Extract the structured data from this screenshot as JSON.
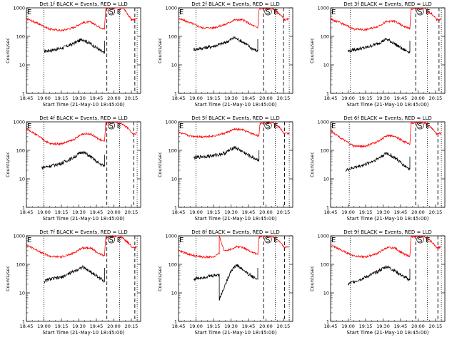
{
  "common": {
    "xlabel": "Start Time (21-May-10 18:45:00)",
    "ylabel": "Counts/sec",
    "x_ticks": [
      "18:45",
      "19:00",
      "19:15",
      "19:30",
      "19:45",
      "20:00",
      "20:15"
    ],
    "y_ticks": [
      "1",
      "10",
      "100",
      "1000"
    ],
    "flags": [
      "S",
      "E"
    ],
    "colors": {
      "events": "#000000",
      "lld": "#ff0000"
    }
  },
  "panels": [
    {
      "title": "Det 1f BLACK = Events, RED = LLD"
    },
    {
      "title": "Det 2f BLACK = Events, RED = LLD"
    },
    {
      "title": "Det 3f BLACK = Events, RED = LLD"
    },
    {
      "title": "Det 4f BLACK = Events, RED = LLD"
    },
    {
      "title": "Det 5f BLACK = Events, RED = LLD"
    },
    {
      "title": "Det 6f BLACK = Events, RED = LLD"
    },
    {
      "title": "Det 7f BLACK = Events, RED = LLD"
    },
    {
      "title": "Det 8f BLACK = Events, RED = LLD"
    },
    {
      "title": "Det 9f BLACK = Events, RED = LLD"
    }
  ],
  "chart_data": [
    {
      "type": "line",
      "title": "Det 1f BLACK = Events, RED = LLD",
      "xlabel": "Start Time (21-May-10 18:45:00)",
      "ylabel": "Counts/sec",
      "xlim": [
        "18:45",
        "20:23"
      ],
      "ylim": [
        1,
        1000
      ],
      "yscale": "log",
      "series": [
        {
          "name": "Events",
          "x": [
            "19:00",
            "19:05",
            "19:15",
            "19:25",
            "19:33",
            "19:40",
            "19:47",
            "19:52",
            "19:52"
          ],
          "y": [
            30,
            32,
            38,
            55,
            80,
            55,
            35,
            25,
            70
          ]
        },
        {
          "name": "LLD",
          "x": [
            "18:45",
            "18:55",
            "19:05",
            "19:15",
            "19:25",
            "19:33",
            "19:40",
            "19:47",
            "19:52",
            "19:53",
            "19:55",
            "20:03",
            "20:08",
            "20:12",
            "20:15",
            "20:20"
          ],
          "y": [
            420,
            280,
            180,
            160,
            200,
            300,
            320,
            220,
            180,
            900,
            1000,
            1000,
            1000,
            600,
            380,
            400
          ]
        }
      ],
      "vlines": {
        "dotted": [
          "19:00",
          "20:05",
          "20:20"
        ],
        "dashed": [
          "19:54",
          "20:18"
        ]
      }
    },
    {
      "type": "line",
      "title": "Det 2f BLACK = Events, RED = LLD",
      "xlabel": "Start Time (21-May-10 18:45:00)",
      "ylabel": "Counts/sec",
      "xlim": [
        "18:45",
        "20:23"
      ],
      "ylim": [
        1,
        1000
      ],
      "yscale": "log",
      "series": [
        {
          "name": "Events",
          "x": [
            "18:58",
            "19:05",
            "19:15",
            "19:25",
            "19:33",
            "19:40",
            "19:47",
            "19:53",
            "19:53"
          ],
          "y": [
            35,
            38,
            45,
            60,
            90,
            65,
            40,
            30,
            80
          ]
        },
        {
          "name": "LLD",
          "x": [
            "18:45",
            "18:55",
            "19:05",
            "19:15",
            "19:25",
            "19:33",
            "19:40",
            "19:47",
            "19:53",
            "19:54",
            "20:05",
            "20:12",
            "20:16",
            "20:20"
          ],
          "y": [
            420,
            300,
            200,
            200,
            260,
            380,
            380,
            260,
            200,
            900,
            1000,
            600,
            380,
            400
          ]
        }
      ],
      "vlines": {
        "dotted": [
          "19:00",
          "20:08",
          "20:20"
        ],
        "dashed": [
          "19:58",
          "20:15"
        ]
      }
    },
    {
      "type": "line",
      "title": "Det 3f BLACK = Events, RED = LLD",
      "xlabel": "Start Time (21-May-10 18:45:00)",
      "ylabel": "Counts/sec",
      "xlim": [
        "18:45",
        "20:23"
      ],
      "ylim": [
        1,
        1000
      ],
      "yscale": "log",
      "series": [
        {
          "name": "Events",
          "x": [
            "19:00",
            "19:05",
            "19:15",
            "19:25",
            "19:33",
            "19:40",
            "19:47",
            "19:53",
            "19:53"
          ],
          "y": [
            30,
            34,
            40,
            55,
            80,
            55,
            35,
            28,
            70
          ]
        },
        {
          "name": "LLD",
          "x": [
            "18:45",
            "18:55",
            "19:05",
            "19:15",
            "19:25",
            "19:33",
            "19:40",
            "19:47",
            "19:53",
            "19:54",
            "20:05",
            "20:12",
            "20:16",
            "20:20"
          ],
          "y": [
            400,
            280,
            180,
            170,
            220,
            330,
            340,
            230,
            190,
            900,
            1000,
            600,
            380,
            400
          ]
        }
      ],
      "vlines": {
        "dotted": [
          "19:02",
          "20:08",
          "20:20"
        ],
        "dashed": [
          "19:58",
          "20:18"
        ]
      }
    },
    {
      "type": "line",
      "title": "Det 4f BLACK = Events, RED = LLD",
      "xlabel": "Start Time (21-May-10 18:45:00)",
      "ylabel": "Counts/sec",
      "xlim": [
        "18:45",
        "20:23"
      ],
      "ylim": [
        1,
        1000
      ],
      "yscale": "log",
      "series": [
        {
          "name": "Events",
          "x": [
            "18:58",
            "19:05",
            "19:15",
            "19:25",
            "19:33",
            "19:40",
            "19:47",
            "19:52",
            "19:52"
          ],
          "y": [
            25,
            28,
            35,
            55,
            90,
            60,
            35,
            28,
            70
          ]
        },
        {
          "name": "LLD",
          "x": [
            "18:45",
            "18:55",
            "19:05",
            "19:15",
            "19:25",
            "19:33",
            "19:40",
            "19:47",
            "19:52",
            "19:53",
            "20:05",
            "20:12",
            "20:16",
            "20:20"
          ],
          "y": [
            600,
            320,
            170,
            170,
            230,
            380,
            380,
            250,
            200,
            900,
            1000,
            600,
            380,
            400
          ]
        }
      ],
      "vlines": {
        "dotted": [
          "19:00",
          "20:05",
          "20:20"
        ],
        "dashed": [
          "19:54",
          "20:17"
        ]
      }
    },
    {
      "type": "line",
      "title": "Det 5f BLACK = Events, RED = LLD",
      "xlabel": "Start Time (21-May-10 18:45:00)",
      "ylabel": "Counts/sec",
      "xlim": [
        "18:45",
        "20:23"
      ],
      "ylim": [
        1,
        1000
      ],
      "yscale": "log",
      "series": [
        {
          "name": "Events",
          "x": [
            "18:58",
            "19:05",
            "19:15",
            "19:25",
            "19:33",
            "19:40",
            "19:47",
            "19:54",
            "19:54"
          ],
          "y": [
            55,
            60,
            65,
            80,
            130,
            90,
            60,
            45,
            100
          ]
        },
        {
          "name": "LLD",
          "x": [
            "18:45",
            "18:55",
            "19:05",
            "19:15",
            "19:25",
            "19:33",
            "19:40",
            "19:47",
            "19:54",
            "19:55",
            "20:06",
            "20:12",
            "20:16",
            "20:20"
          ],
          "y": [
            420,
            320,
            300,
            320,
            400,
            550,
            520,
            400,
            320,
            900,
            1000,
            600,
            380,
            400
          ]
        }
      ],
      "vlines": {
        "dotted": [
          "19:00",
          "20:08",
          "20:20"
        ],
        "dashed": [
          "19:58",
          "20:16"
        ]
      }
    },
    {
      "type": "line",
      "title": "Det 6f BLACK = Events, RED = LLD",
      "xlabel": "Start Time (21-May-10 18:45:00)",
      "ylabel": "Counts/sec",
      "xlim": [
        "18:45",
        "20:23"
      ],
      "ylim": [
        1,
        1000
      ],
      "yscale": "log",
      "series": [
        {
          "name": "Events",
          "x": [
            "18:58",
            "19:05",
            "19:15",
            "19:25",
            "19:33",
            "19:40",
            "19:47",
            "19:53",
            "19:53"
          ],
          "y": [
            20,
            25,
            32,
            50,
            80,
            55,
            32,
            22,
            60
          ]
        },
        {
          "name": "LLD",
          "x": [
            "18:45",
            "18:55",
            "19:05",
            "19:15",
            "19:25",
            "19:33",
            "19:40",
            "19:47",
            "19:53",
            "19:54",
            "20:05",
            "20:12",
            "20:16",
            "20:20"
          ],
          "y": [
            500,
            250,
            140,
            140,
            200,
            320,
            320,
            210,
            170,
            900,
            1000,
            600,
            380,
            400
          ]
        }
      ],
      "vlines": {
        "dotted": [
          "19:01",
          "20:08",
          "20:20"
        ],
        "dashed": [
          "19:58",
          "20:17"
        ]
      }
    },
    {
      "type": "line",
      "title": "Det 7f BLACK = Events, RED = LLD",
      "xlabel": "Start Time (21-May-10 18:45:00)",
      "ylabel": "Counts/sec",
      "xlim": [
        "18:45",
        "20:23"
      ],
      "ylim": [
        1,
        1000
      ],
      "yscale": "log",
      "series": [
        {
          "name": "Events",
          "x": [
            "19:00",
            "19:05",
            "19:15",
            "19:25",
            "19:33",
            "19:40",
            "19:47",
            "19:52",
            "19:52"
          ],
          "y": [
            25,
            30,
            35,
            55,
            80,
            55,
            35,
            25,
            75
          ]
        },
        {
          "name": "LLD",
          "x": [
            "18:45",
            "18:55",
            "19:05",
            "19:15",
            "19:25",
            "19:33",
            "19:40",
            "19:47",
            "19:52",
            "19:53",
            "20:05",
            "20:12",
            "20:16",
            "20:20"
          ],
          "y": [
            480,
            300,
            190,
            180,
            240,
            380,
            380,
            240,
            200,
            900,
            1000,
            600,
            380,
            400
          ]
        }
      ],
      "vlines": {
        "dotted": [
          "19:00",
          "20:05",
          "20:20"
        ],
        "dashed": [
          "19:54",
          "20:18"
        ]
      }
    },
    {
      "type": "line",
      "title": "Det 8f BLACK = Events, RED = LLD",
      "xlabel": "Start Time (21-May-10 18:45:00)",
      "ylabel": "Counts/sec",
      "xlim": [
        "18:45",
        "20:23"
      ],
      "ylim": [
        1,
        1000
      ],
      "yscale": "log",
      "series": [
        {
          "name": "Events",
          "x": [
            "18:58",
            "19:05",
            "19:15",
            "19:20",
            "19:20",
            "19:30",
            "19:35",
            "19:40",
            "19:47",
            "19:53",
            "19:53"
          ],
          "y": [
            30,
            35,
            40,
            45,
            6,
            60,
            95,
            65,
            40,
            30,
            75
          ]
        },
        {
          "name": "LLD",
          "x": [
            "18:45",
            "18:55",
            "19:05",
            "19:15",
            "19:20",
            "19:20",
            "19:24",
            "19:30",
            "19:35",
            "19:40",
            "19:47",
            "19:53",
            "19:54",
            "20:05",
            "20:12",
            "20:16",
            "20:20"
          ],
          "y": [
            300,
            220,
            180,
            180,
            240,
            1000,
            300,
            340,
            420,
            400,
            280,
            220,
            900,
            1000,
            600,
            380,
            400
          ]
        }
      ],
      "vlines": {
        "dotted": [
          "19:00",
          "20:08",
          "20:20"
        ],
        "dashed": [
          "19:58",
          "20:16"
        ]
      }
    },
    {
      "type": "line",
      "title": "Det 9f BLACK = Events, RED = LLD",
      "xlabel": "Start Time (21-May-10 18:45:00)",
      "ylabel": "Counts/sec",
      "xlim": [
        "18:45",
        "20:23"
      ],
      "ylim": [
        1,
        1000
      ],
      "yscale": "log",
      "series": [
        {
          "name": "Events",
          "x": [
            "19:00",
            "19:05",
            "19:15",
            "19:25",
            "19:33",
            "19:40",
            "19:47",
            "19:53",
            "19:53"
          ],
          "y": [
            20,
            25,
            35,
            55,
            85,
            60,
            38,
            28,
            70
          ]
        },
        {
          "name": "LLD",
          "x": [
            "18:45",
            "18:55",
            "19:05",
            "19:15",
            "19:25",
            "19:33",
            "19:40",
            "19:47",
            "19:53",
            "19:54",
            "20:05",
            "20:12",
            "20:16",
            "20:20"
          ],
          "y": [
            480,
            300,
            200,
            180,
            240,
            380,
            380,
            240,
            190,
            900,
            1000,
            600,
            380,
            400
          ]
        }
      ],
      "vlines": {
        "dotted": [
          "19:02",
          "20:08",
          "20:20"
        ],
        "dashed": [
          "19:58",
          "20:17"
        ]
      }
    }
  ]
}
